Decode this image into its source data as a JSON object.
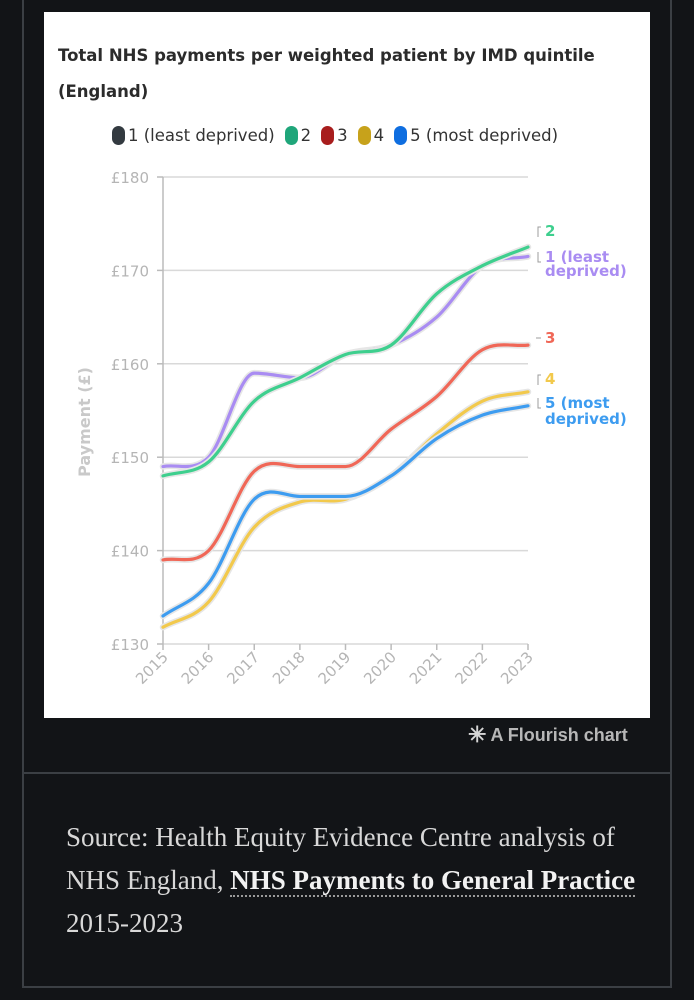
{
  "chart_data": {
    "type": "line",
    "title": "Total NHS payments per weighted patient by IMD quintile (England)",
    "xlabel": "",
    "ylabel": "Payment (£)",
    "ylim": [
      130,
      180
    ],
    "yticks": [
      130,
      140,
      150,
      160,
      170,
      180
    ],
    "ytick_labels": [
      "£130",
      "£140",
      "£150",
      "£160",
      "£170",
      "£180"
    ],
    "x": [
      "2015",
      "2016",
      "2017",
      "2018",
      "2019",
      "2020",
      "2021",
      "2022",
      "2023"
    ],
    "grid": true,
    "legend_position": "top",
    "series": [
      {
        "name": "1 (least deprived)",
        "color": "#333a40",
        "line_color": "#a98cf2",
        "end_label": [
          "1 (least",
          "deprived)"
        ],
        "values": [
          149,
          150,
          159,
          158.5,
          161,
          162,
          165,
          170.5,
          171.5
        ]
      },
      {
        "name": "2",
        "color": "#1fa67a",
        "line_color": "#3ecf8e",
        "end_label": [
          "2"
        ],
        "values": [
          148,
          149.5,
          156,
          158.5,
          161,
          162,
          167.5,
          170.5,
          172.5
        ]
      },
      {
        "name": "3",
        "color": "#a81d1d",
        "line_color": "#f06757",
        "end_label": [
          "3"
        ],
        "values": [
          139,
          140,
          148.5,
          149,
          149,
          153,
          156.5,
          161.5,
          162
        ]
      },
      {
        "name": "4",
        "color": "#c7a21b",
        "line_color": "#f2c94c",
        "end_label": [
          "4"
        ],
        "values": [
          131.8,
          134.5,
          142.5,
          145.2,
          145.5,
          148,
          152.5,
          156,
          157
        ]
      },
      {
        "name": "5 (most deprived)",
        "color": "#0f6ee0",
        "line_color": "#3d9cf0",
        "end_label": [
          "5 (most",
          "deprived)"
        ],
        "values": [
          133,
          136.5,
          145.5,
          145.8,
          145.8,
          148,
          152,
          154.5,
          155.5
        ]
      }
    ]
  },
  "attribution": {
    "star": "✳",
    "text": "A Flourish chart"
  },
  "source": {
    "prefix": "Source: Health Equity Evidence Centre analysis of NHS England, ",
    "link_text": "NHS Payments to General Practice",
    "suffix": " 2015-2023"
  }
}
